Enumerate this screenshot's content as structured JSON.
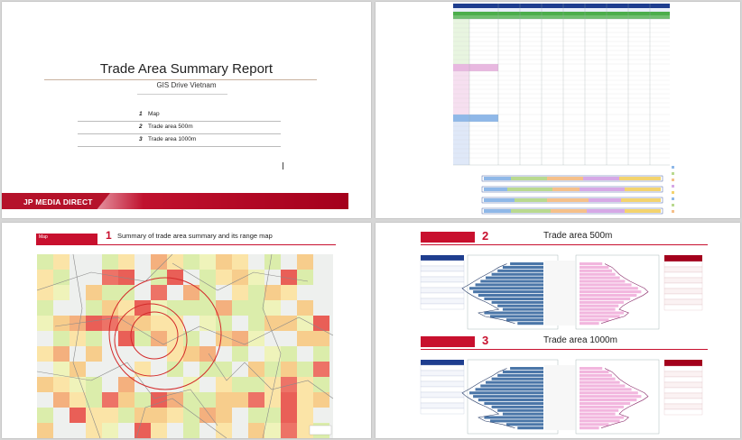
{
  "slide1": {
    "title": "Trade Area Summary Report",
    "subtitle": "GIS Drive Vietnam",
    "toc": [
      {
        "num": "1",
        "label": "Map"
      },
      {
        "num": "2",
        "label": "Trade area   500m"
      },
      {
        "num": "3",
        "label": "Trade area   1000m"
      }
    ],
    "brand": "JP MEDIA DIRECT"
  },
  "slide3": {
    "tab": "Map",
    "num": "1",
    "title": "Summary of trade area summary and its range map"
  },
  "slide4": {
    "sections": [
      {
        "tab": "",
        "num": "2",
        "title": "Trade area 500m"
      },
      {
        "tab": "",
        "num": "3",
        "title": "Trade area 1000m"
      }
    ],
    "male_label": "Male",
    "female_label": "Female"
  },
  "colors": {
    "brand_red": "#c8102e",
    "table_blue": "#1f3e8f",
    "male_bar": "#4b76a8",
    "female_bar": "#f2b6de"
  }
}
